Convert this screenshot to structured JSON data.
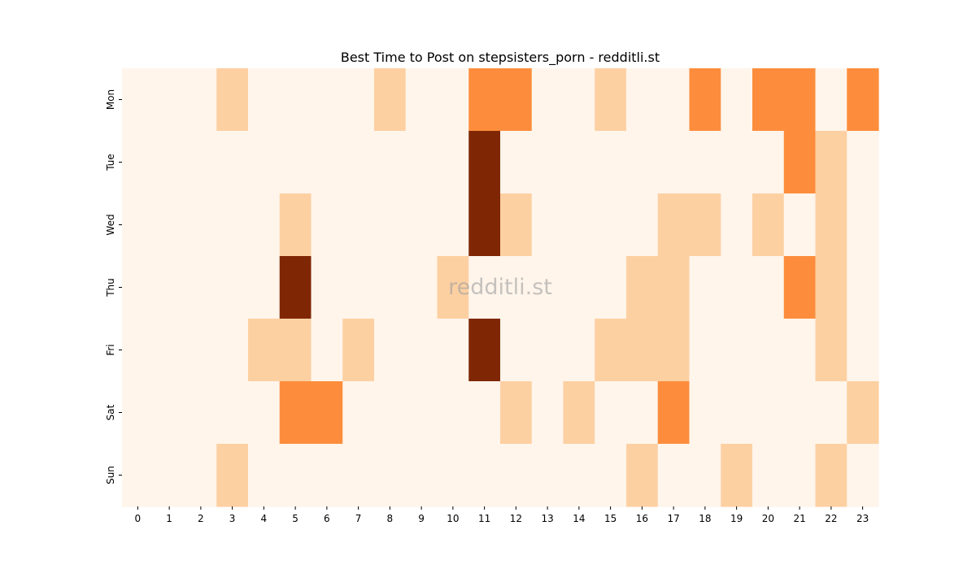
{
  "chart_data": {
    "type": "heatmap",
    "title": "Best Time to Post on stepsisters_porn - redditli.st",
    "watermark": "redditli.st",
    "xlabel": "",
    "ylabel": "",
    "x": [
      "0",
      "1",
      "2",
      "3",
      "4",
      "5",
      "6",
      "7",
      "8",
      "9",
      "10",
      "11",
      "12",
      "13",
      "14",
      "15",
      "16",
      "17",
      "18",
      "19",
      "20",
      "21",
      "22",
      "23"
    ],
    "y": [
      "Mon",
      "Tue",
      "Wed",
      "Thu",
      "Fri",
      "Sat",
      "Sun"
    ],
    "values": [
      [
        0,
        0,
        0,
        1,
        0,
        0,
        0,
        0,
        1,
        0,
        0,
        2,
        2,
        0,
        0,
        1,
        0,
        0,
        2,
        0,
        2,
        2,
        0,
        2
      ],
      [
        0,
        0,
        0,
        0,
        0,
        0,
        0,
        0,
        0,
        0,
        0,
        3,
        0,
        0,
        0,
        0,
        0,
        0,
        0,
        0,
        0,
        2,
        1,
        0
      ],
      [
        0,
        0,
        0,
        0,
        0,
        1,
        0,
        0,
        0,
        0,
        0,
        3,
        1,
        0,
        0,
        0,
        0,
        1,
        1,
        0,
        1,
        0,
        1,
        0
      ],
      [
        0,
        0,
        0,
        0,
        0,
        3,
        0,
        0,
        0,
        0,
        1,
        0,
        0,
        0,
        0,
        0,
        1,
        1,
        0,
        0,
        0,
        2,
        1,
        0
      ],
      [
        0,
        0,
        0,
        0,
        1,
        1,
        0,
        1,
        0,
        0,
        0,
        3,
        0,
        0,
        0,
        1,
        1,
        1,
        0,
        0,
        0,
        0,
        1,
        0
      ],
      [
        0,
        0,
        0,
        0,
        0,
        2,
        2,
        0,
        0,
        0,
        0,
        0,
        1,
        0,
        1,
        0,
        0,
        2,
        0,
        0,
        0,
        0,
        0,
        1
      ],
      [
        0,
        0,
        0,
        1,
        0,
        0,
        0,
        0,
        0,
        0,
        0,
        0,
        0,
        0,
        0,
        0,
        1,
        0,
        0,
        1,
        0,
        0,
        1,
        0
      ]
    ],
    "colormap": [
      "#fff5eb",
      "#fdd0a2",
      "#fd8d3c",
      "#7f2704"
    ],
    "colorbar": false,
    "grid": false
  }
}
